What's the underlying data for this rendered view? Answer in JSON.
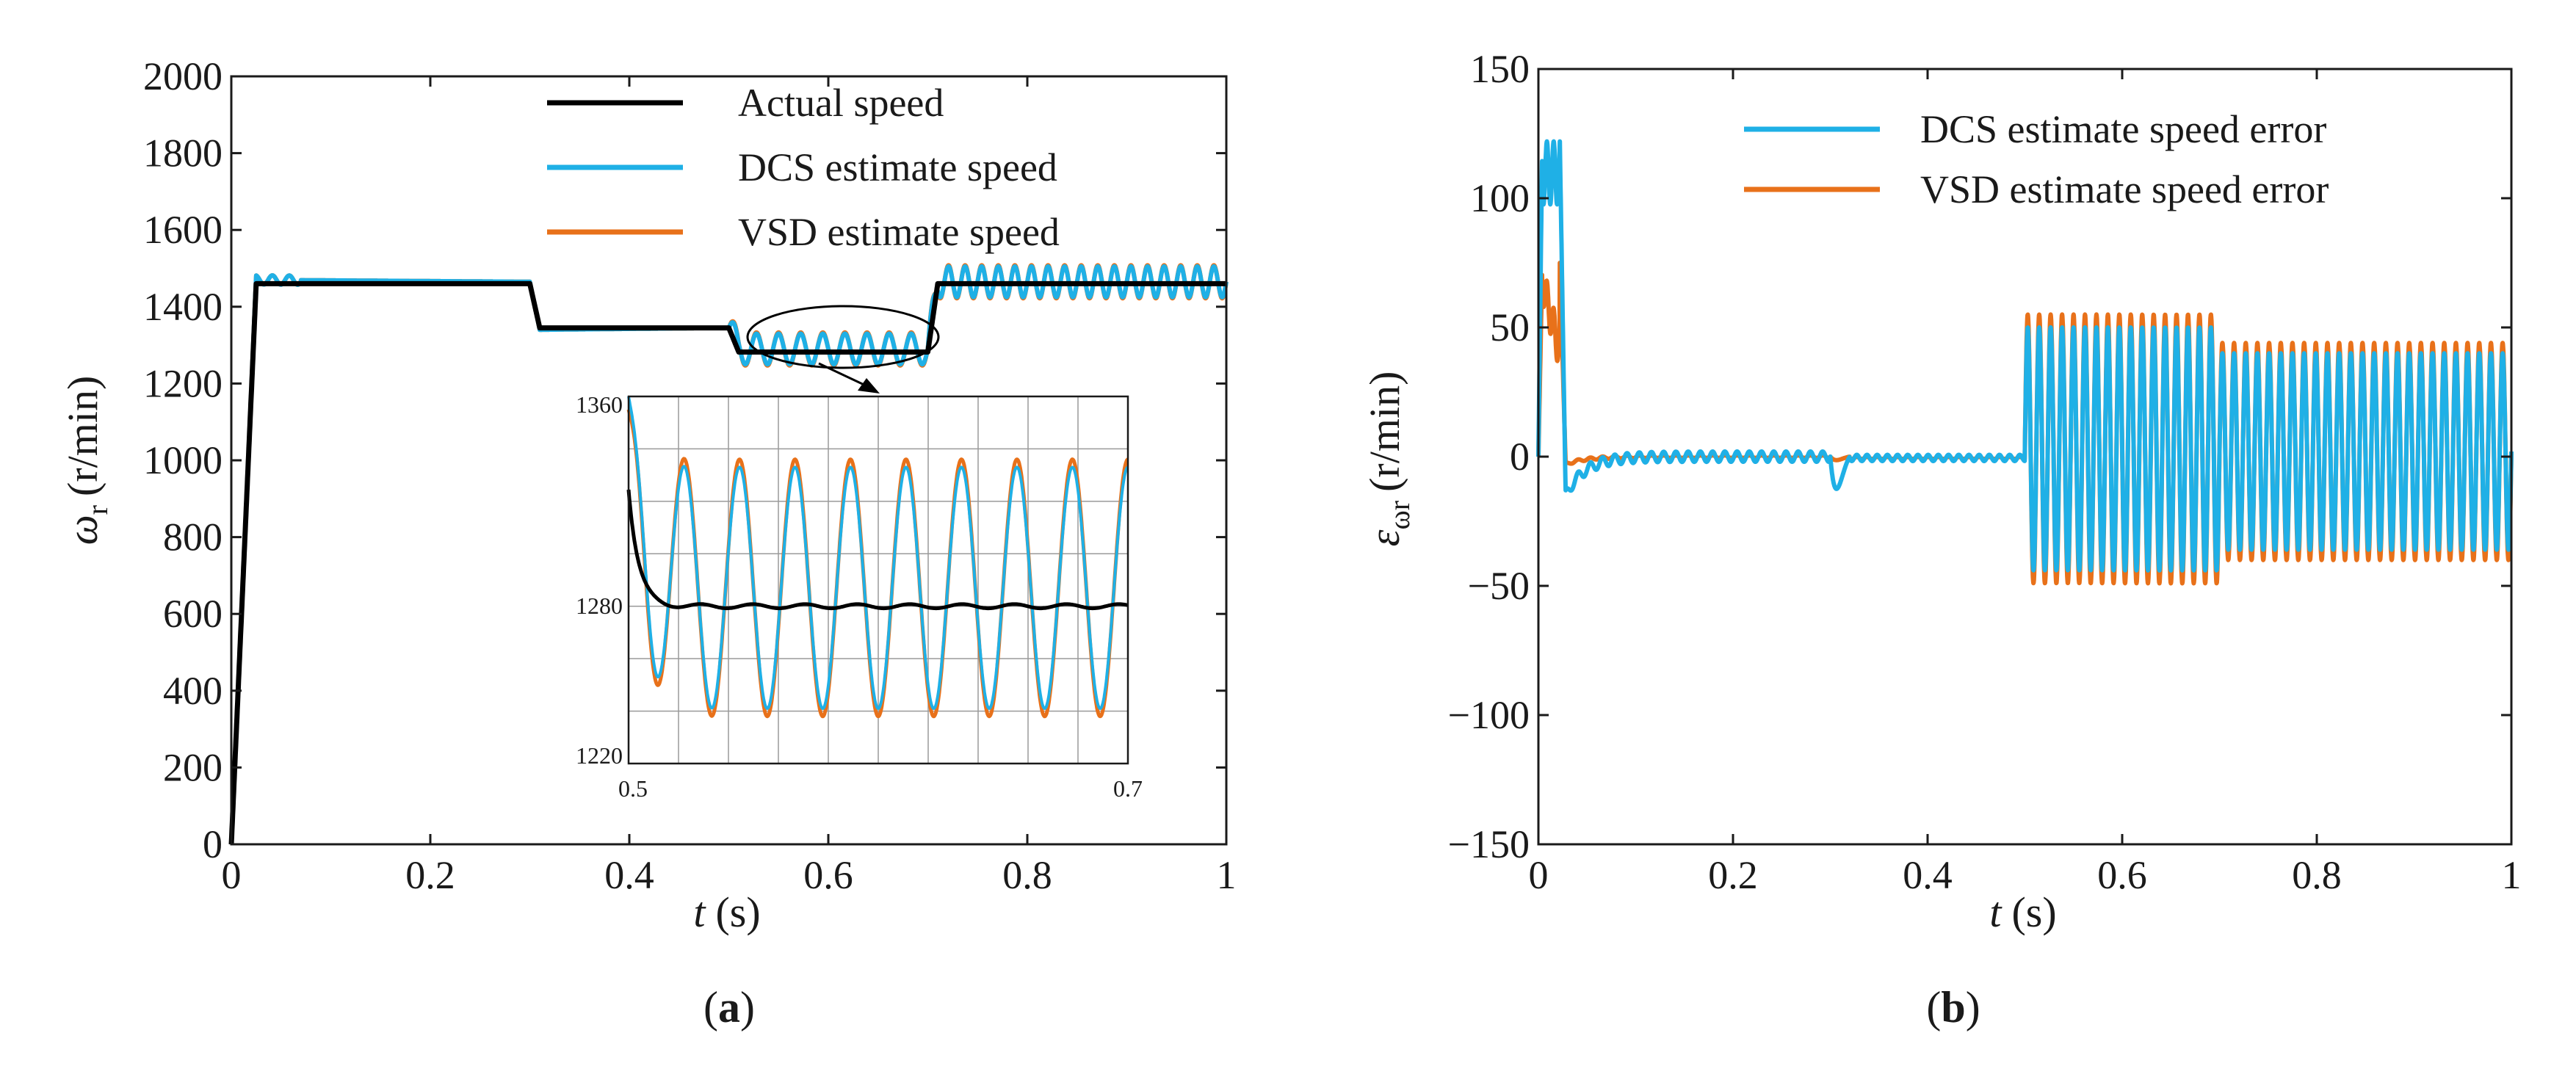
{
  "colors": {
    "actual": "#000000",
    "dcs": "#1fb0e6",
    "vsd": "#e8711a",
    "axis": "#1a1a1a",
    "inset_grid": "#9a9a9a"
  },
  "chart_data": [
    {
      "id": "a",
      "type": "line",
      "panel_label": {
        "open": "(",
        "letter": "a",
        "close": ")"
      },
      "xlabel": {
        "var": "t",
        "unit": "(s)"
      },
      "ylabel": {
        "sym": "ω",
        "sub": "r",
        "unit": "(r/min)"
      },
      "xlim": [
        0,
        1
      ],
      "ylim": [
        0,
        2000
      ],
      "xticks": [
        0,
        0.2,
        0.4,
        0.6,
        0.8,
        1
      ],
      "xtick_labels": [
        "0",
        "0.2",
        "0.4",
        "0.6",
        "0.8",
        "1"
      ],
      "yticks": [
        0,
        200,
        400,
        600,
        800,
        1000,
        1200,
        1400,
        1600,
        1800,
        2000
      ],
      "ytick_labels": [
        "0",
        "200",
        "400",
        "600",
        "800",
        "1000",
        "1200",
        "1400",
        "1600",
        "1800",
        "2000"
      ],
      "legend_position": "top-right",
      "series": [
        {
          "name": "Actual speed",
          "color_key": "actual",
          "profile": [
            [
              0,
              0
            ],
            [
              0.025,
              1460
            ],
            [
              0.3,
              1460
            ],
            [
              0.31,
              1345
            ],
            [
              0.4,
              1345
            ],
            [
              0.5,
              1345
            ],
            [
              0.51,
              1282
            ],
            [
              0.7,
              1282
            ],
            [
              0.71,
              1460
            ],
            [
              1.0,
              1460
            ]
          ]
        },
        {
          "name": "DCS estimate speed",
          "color_key": "dcs",
          "profile": [
            [
              0,
              0
            ],
            [
              0.025,
              1470
            ],
            [
              0.3,
              1465
            ],
            [
              0.31,
              1340
            ],
            [
              0.5,
              1345
            ],
            [
              0.51,
              1290
            ],
            [
              0.7,
              1290
            ],
            [
              0.71,
              1465
            ],
            [
              1.0,
              1465
            ]
          ],
          "oscillation": [
            {
              "from": 0.5,
              "to": 0.7,
              "amplitude": 40,
              "cycles": 9
            },
            {
              "from": 0.7,
              "to": 1.0,
              "amplitude": 40,
              "cycles": 18
            }
          ]
        },
        {
          "name": "VSD estimate speed",
          "color_key": "vsd",
          "profile": [
            [
              0,
              0
            ],
            [
              0.025,
              1470
            ],
            [
              0.3,
              1465
            ],
            [
              0.31,
              1340
            ],
            [
              0.5,
              1345
            ],
            [
              0.51,
              1290
            ],
            [
              0.7,
              1290
            ],
            [
              0.71,
              1465
            ],
            [
              1.0,
              1465
            ]
          ],
          "oscillation": [
            {
              "from": 0.5,
              "to": 0.7,
              "amplitude": 43,
              "cycles": 9
            },
            {
              "from": 0.7,
              "to": 1.0,
              "amplitude": 43,
              "cycles": 18
            }
          ]
        }
      ],
      "inset": {
        "xlim": [
          0.5,
          0.7
        ],
        "ylim": [
          1220,
          1360
        ],
        "xtick_labels": [
          "0.5",
          "0.7"
        ],
        "ytick_labels": [
          "1220",
          "1280",
          "1360"
        ],
        "grid": true,
        "actual": {
          "start": 1325,
          "settle": 1280,
          "tau": 0.004
        },
        "dcs": {
          "center": 1287,
          "amplitude": 46,
          "cycles": 9,
          "start": 1360
        },
        "vsd": {
          "center": 1287,
          "amplitude": 49,
          "cycles": 9,
          "start": 1355
        }
      }
    },
    {
      "id": "b",
      "type": "line",
      "panel_label": {
        "open": "(",
        "letter": "b",
        "close": ")"
      },
      "xlabel": {
        "var": "t",
        "unit": "(s)"
      },
      "ylabel": {
        "sym": "ε",
        "sub": "ωr",
        "unit": "(r/min)"
      },
      "xlim": [
        0,
        1
      ],
      "ylim": [
        -150,
        150
      ],
      "xticks": [
        0,
        0.2,
        0.4,
        0.6,
        0.8,
        1
      ],
      "xtick_labels": [
        "0",
        "0.2",
        "0.4",
        "0.6",
        "0.8",
        "1"
      ],
      "yticks": [
        -150,
        -100,
        -50,
        0,
        50,
        100,
        150
      ],
      "ytick_labels": [
        "−150",
        "−100",
        "−50",
        "0",
        "50",
        "100",
        "150"
      ],
      "legend_position": "top-right",
      "series": [
        {
          "name": "DCS estimate speed error",
          "color_key": "dcs",
          "startup_peak": 122,
          "startup_dip": -15,
          "disturbance_at": 0.3,
          "disturbance_dip": -28,
          "oscillation": [
            {
              "from": 0.5,
              "to": 0.7,
              "amplitude": 47,
              "cycles": 17
            },
            {
              "from": 0.7,
              "to": 1.0,
              "amplitude": 38,
              "cycles": 25
            }
          ]
        },
        {
          "name": "VSD estimate speed error",
          "color_key": "vsd",
          "startup_peak": 75,
          "startup_dip": -3,
          "disturbance_at": 0.3,
          "disturbance_dip": -3,
          "oscillation": [
            {
              "from": 0.5,
              "to": 0.7,
              "amplitude": 52,
              "cycles": 17
            },
            {
              "from": 0.7,
              "to": 1.0,
              "amplitude": 42,
              "cycles": 25
            }
          ]
        }
      ]
    }
  ]
}
